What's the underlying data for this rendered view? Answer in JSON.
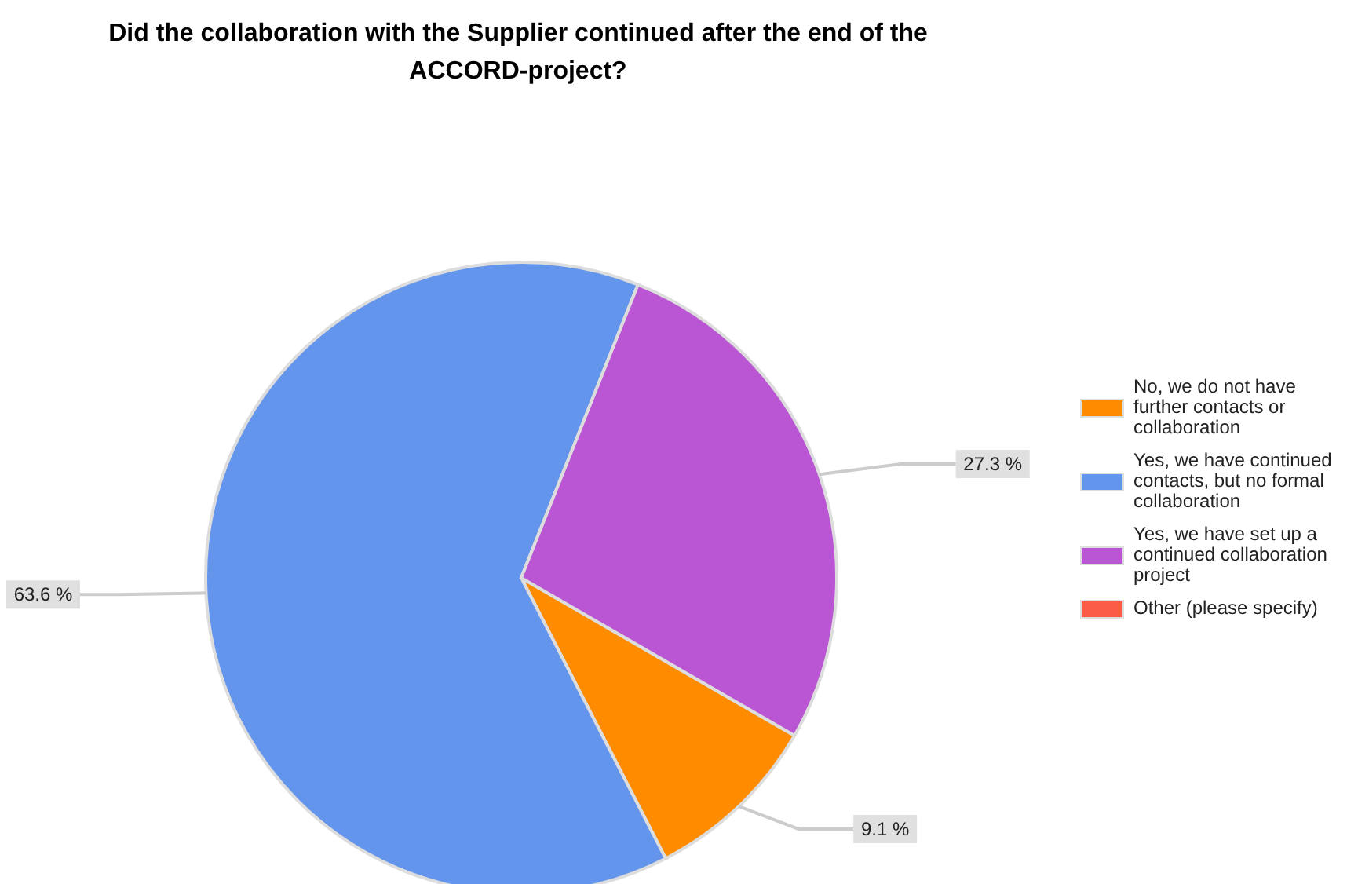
{
  "chart_data": {
    "type": "pie",
    "title": "Did the collaboration with the Supplier continued after the end of the ACCORD-project?",
    "categories": [
      "No, we do not have further contacts or collaboration",
      "Yes, we have continued contacts, but no formal collaboration",
      "Yes, we have set up a continued collaboration project",
      "Other (please specify)"
    ],
    "values": [
      9.1,
      63.6,
      27.3,
      0
    ],
    "colors": [
      "#ff8c00",
      "#6495ed",
      "#ba55d3",
      "#fa5c45"
    ],
    "value_labels": [
      "9.1 %",
      "63.6 %",
      "27.3 %",
      null
    ],
    "legend": "right"
  }
}
